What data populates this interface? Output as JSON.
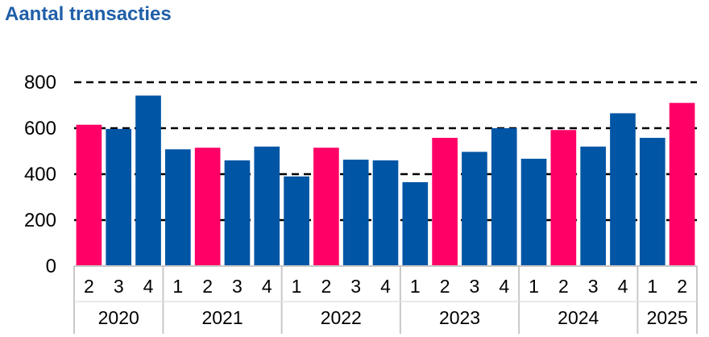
{
  "chart_data": {
    "type": "bar",
    "title": "Aantal transacties",
    "ylim": [
      0,
      800
    ],
    "yticks": [
      0,
      200,
      400,
      600,
      800
    ],
    "grid": "dashed horizontal",
    "colors": {
      "highlight": "#ff0066",
      "default": "#0055a5"
    },
    "groups": [
      {
        "year": "2020",
        "quarters": [
          "2",
          "3",
          "4"
        ]
      },
      {
        "year": "2021",
        "quarters": [
          "1",
          "2",
          "3",
          "4"
        ]
      },
      {
        "year": "2022",
        "quarters": [
          "1",
          "2",
          "3",
          "4"
        ]
      },
      {
        "year": "2023",
        "quarters": [
          "1",
          "2",
          "3",
          "4"
        ]
      },
      {
        "year": "2024",
        "quarters": [
          "1",
          "2",
          "3",
          "4"
        ]
      },
      {
        "year": "2025",
        "quarters": [
          "1",
          "2"
        ]
      }
    ],
    "values": [
      615,
      597,
      742,
      508,
      515,
      460,
      520,
      390,
      515,
      463,
      460,
      365,
      558,
      497,
      600,
      467,
      592,
      520,
      665,
      558,
      710
    ],
    "highlighted": [
      true,
      false,
      false,
      false,
      true,
      false,
      false,
      false,
      true,
      false,
      false,
      false,
      true,
      false,
      false,
      false,
      true,
      false,
      false,
      false,
      true
    ]
  }
}
